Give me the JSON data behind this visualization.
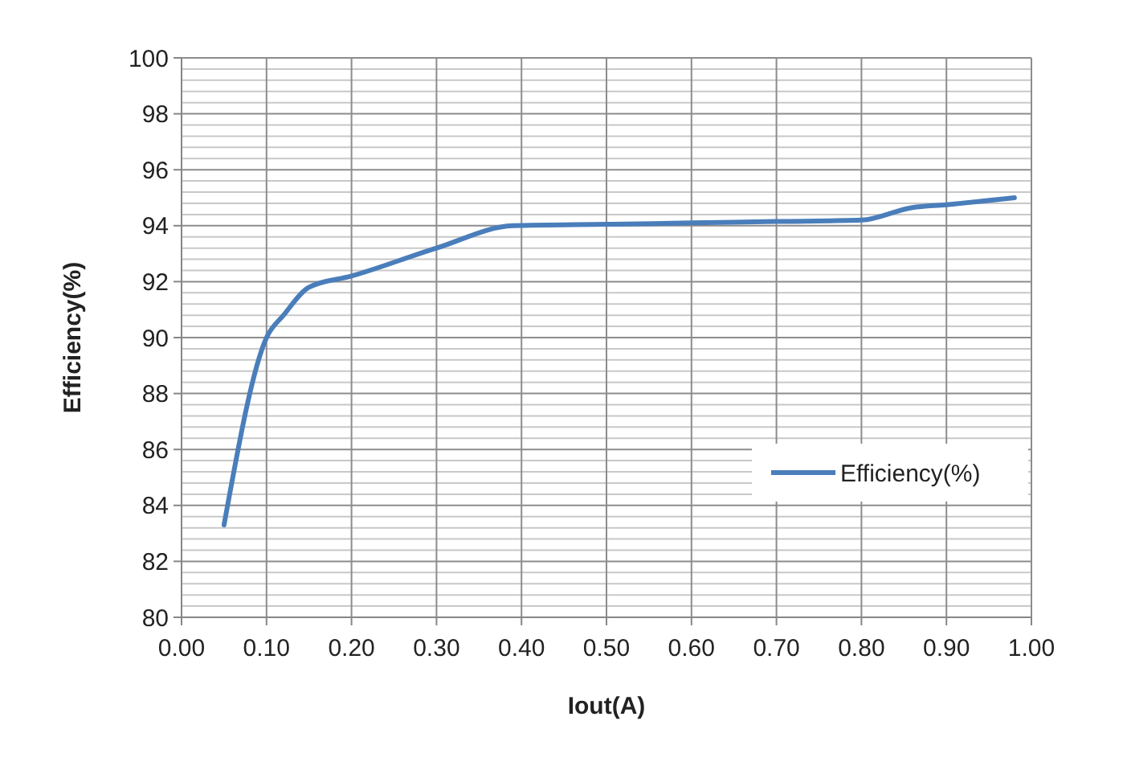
{
  "chart_data": {
    "type": "line",
    "xlabel": "Iout(A)",
    "ylabel": "Efficiency(%)",
    "x": [
      0.05,
      0.1,
      0.12,
      0.15,
      0.2,
      0.3,
      0.39,
      0.5,
      0.6,
      0.7,
      0.8,
      0.86,
      0.9,
      0.98
    ],
    "series": [
      {
        "name": "Efficiency(%)",
        "color": "#4a7ebb",
        "values": [
          83.3,
          90.0,
          90.8,
          91.8,
          92.2,
          93.2,
          94.0,
          94.05,
          94.1,
          94.15,
          94.2,
          94.65,
          94.75,
          95.0
        ]
      }
    ],
    "xlim": [
      0,
      1
    ],
    "xticks": [
      {
        "value": 0,
        "label": "0.00"
      },
      {
        "value": 0.1,
        "label": "0.10"
      },
      {
        "value": 0.2,
        "label": "0.20"
      },
      {
        "value": 0.3,
        "label": "0.30"
      },
      {
        "value": 0.4,
        "label": "0.40"
      },
      {
        "value": 0.5,
        "label": "0.50"
      },
      {
        "value": 0.6,
        "label": "0.60"
      },
      {
        "value": 0.7,
        "label": "0.70"
      },
      {
        "value": 0.8,
        "label": "0.80"
      },
      {
        "value": 0.9,
        "label": "0.90"
      },
      {
        "value": 1,
        "label": "1.00"
      }
    ],
    "ylim": [
      80,
      100
    ],
    "yticks": [
      80,
      82,
      84,
      86,
      88,
      90,
      92,
      94,
      96,
      98,
      100
    ],
    "grid": true,
    "legend": "bottom right",
    "marker": "none",
    "line_style": "solid"
  }
}
